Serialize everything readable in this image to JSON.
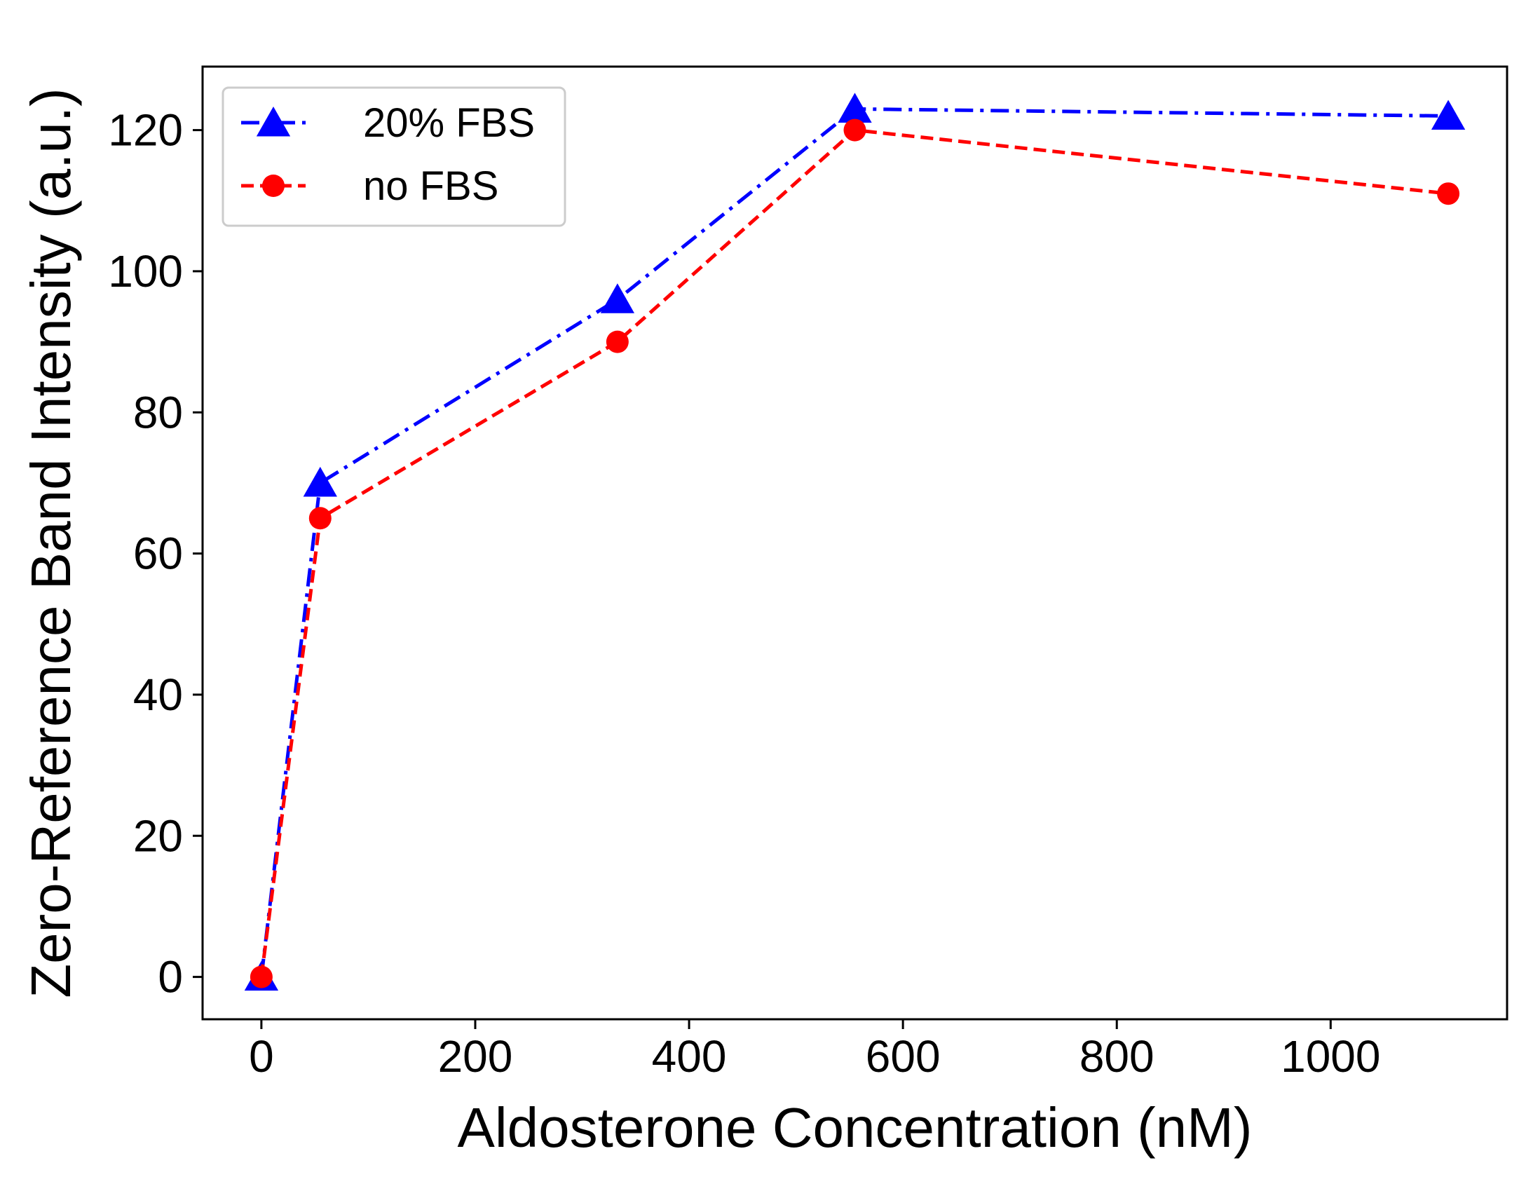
{
  "chart_data": {
    "type": "line",
    "title": "",
    "xlabel": "Aldosterone Concentration (nM)",
    "ylabel": "Zero-Reference Band Intensity (a.u.)",
    "xlim": [
      -55,
      1165
    ],
    "ylim": [
      -6,
      129
    ],
    "xticks": [
      0,
      200,
      400,
      600,
      800,
      1000
    ],
    "yticks": [
      0,
      20,
      40,
      60,
      80,
      100,
      120
    ],
    "grid": false,
    "legend_position": "top-left",
    "series": [
      {
        "name": "20% FBS",
        "color": "#0000ff",
        "marker": "triangle",
        "line_style": "dash-dot",
        "x": [
          0,
          55,
          333,
          555,
          1110
        ],
        "y": [
          0,
          70,
          96,
          123,
          122
        ]
      },
      {
        "name": "no FBS",
        "color": "#ff0000",
        "marker": "circle",
        "line_style": "dashed",
        "x": [
          0,
          55,
          333,
          555,
          1110
        ],
        "y": [
          0,
          65,
          90,
          120,
          111
        ]
      }
    ]
  }
}
